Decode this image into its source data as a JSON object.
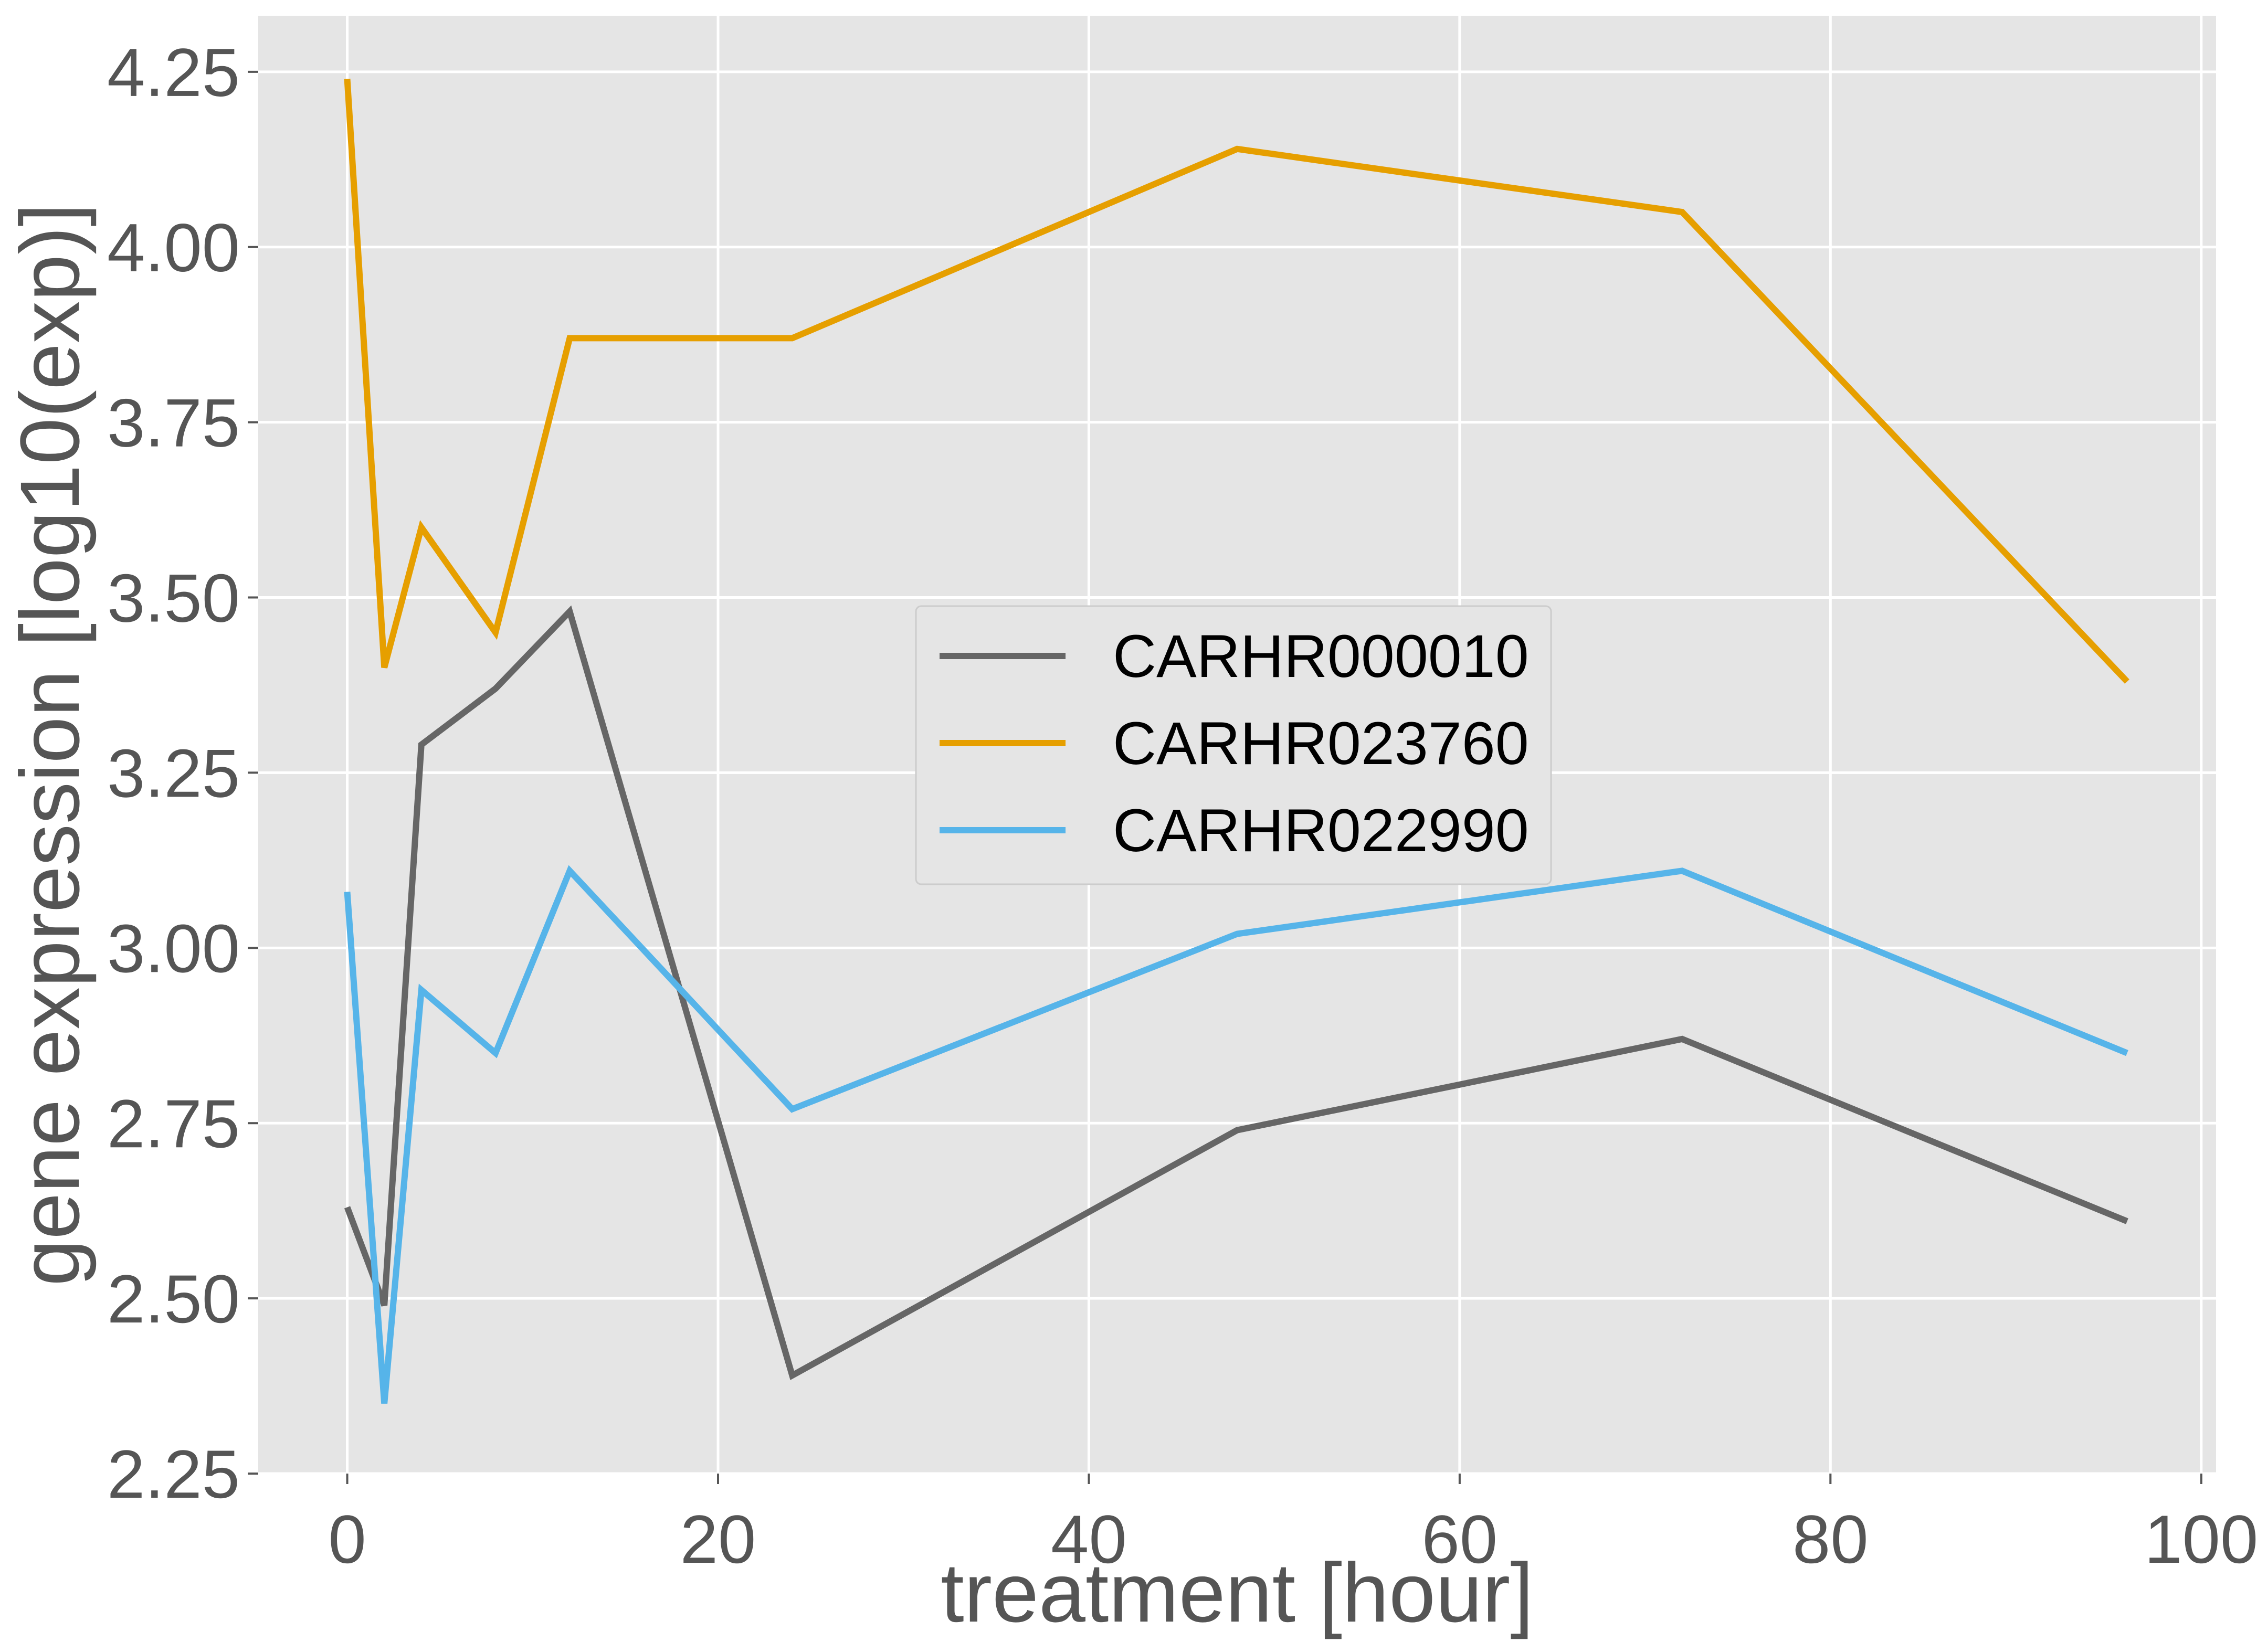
{
  "chart_data": {
    "type": "line",
    "title": "",
    "xlabel": "treatment [hour]",
    "ylabel": "gene expression [log10(exp)]",
    "xlim": [
      -4.8,
      100.8
    ],
    "ylim": [
      2.25,
      4.33
    ],
    "xticks": [
      0,
      20,
      40,
      60,
      80,
      100
    ],
    "yticks": [
      2.25,
      2.5,
      2.75,
      3.0,
      3.25,
      3.5,
      3.75,
      4.0,
      4.25
    ],
    "xtick_labels": [
      "0",
      "20",
      "40",
      "60",
      "80",
      "100"
    ],
    "ytick_labels": [
      "2.25",
      "2.50",
      "2.75",
      "3.00",
      "3.25",
      "3.50",
      "3.75",
      "4.00",
      "4.25"
    ],
    "grid": true,
    "legend_position": "center",
    "colors": {
      "background": "#e5e5e5",
      "grid": "#ffffff"
    },
    "x": [
      0,
      2,
      4,
      8,
      12,
      24,
      48,
      72,
      96
    ],
    "series": [
      {
        "name": "CARHR000010",
        "color": "#666666",
        "values": [
          2.63,
          2.49,
          3.29,
          3.37,
          3.48,
          2.39,
          2.74,
          2.87,
          2.61
        ]
      },
      {
        "name": "CARHR023760",
        "color": "#e69f00",
        "values": [
          4.24,
          3.4,
          3.6,
          3.45,
          3.87,
          3.87,
          4.14,
          4.05,
          3.38
        ]
      },
      {
        "name": "CARHR022990",
        "color": "#56b4e9",
        "values": [
          3.08,
          2.35,
          2.94,
          2.85,
          3.11,
          2.77,
          3.02,
          3.11,
          2.85
        ]
      }
    ]
  }
}
